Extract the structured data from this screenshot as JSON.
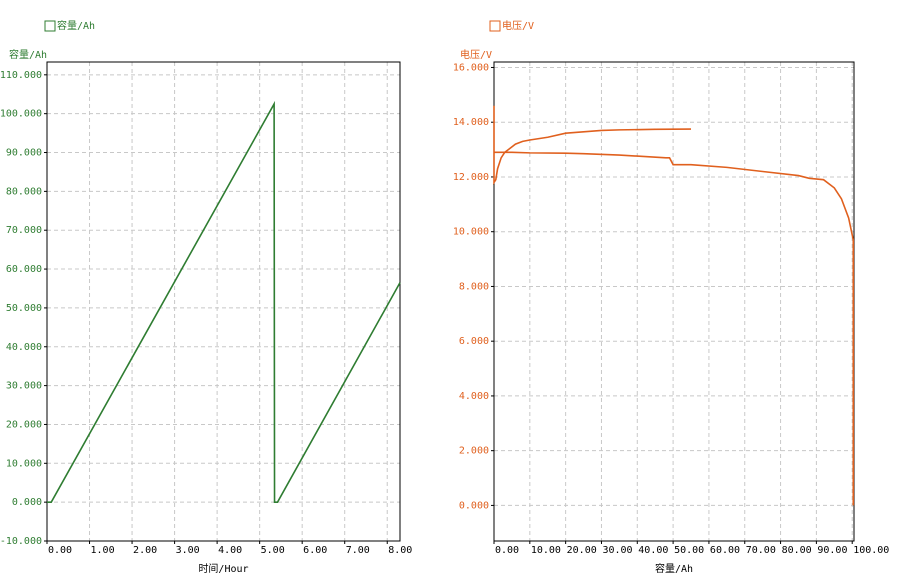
{
  "chart_data": [
    {
      "type": "line",
      "legend_corner": "top-left",
      "grid": true,
      "ylabel": "容量/Ah",
      "xlabel": "时间/Hour",
      "xlim": [
        0,
        8.3
      ],
      "ylim": [
        -10,
        113.3
      ],
      "xticks": [
        {
          "value": 0,
          "label": "0.00"
        },
        {
          "value": 1,
          "label": "1.00"
        },
        {
          "value": 2,
          "label": "2.00"
        },
        {
          "value": 3,
          "label": "3.00"
        },
        {
          "value": 4,
          "label": "4.00"
        },
        {
          "value": 5,
          "label": "5.00"
        },
        {
          "value": 6,
          "label": "6.00"
        },
        {
          "value": 7,
          "label": "7.00"
        },
        {
          "value": 8,
          "label": "8.00"
        }
      ],
      "yticks": [
        {
          "value": -10,
          "label": "-10.000"
        },
        {
          "value": 0,
          "label": "0.000"
        },
        {
          "value": 10,
          "label": "10.000"
        },
        {
          "value": 20,
          "label": "20.000"
        },
        {
          "value": 30,
          "label": "30.000"
        },
        {
          "value": 40,
          "label": "40.000"
        },
        {
          "value": 50,
          "label": "50.000"
        },
        {
          "value": 60,
          "label": "60.000"
        },
        {
          "value": 70,
          "label": "70.000"
        },
        {
          "value": 80,
          "label": "80.000"
        },
        {
          "value": 90,
          "label": "90.000"
        },
        {
          "value": 100,
          "label": "100.000"
        },
        {
          "value": 110,
          "label": "110.000"
        }
      ],
      "series": [
        {
          "name": "容量/Ah",
          "color": "#2f7d32",
          "x": [
            0,
            0.1,
            5.34,
            5.35,
            5.42,
            8.3
          ],
          "values": [
            0,
            0,
            102.5,
            0,
            0,
            56.5
          ]
        }
      ]
    },
    {
      "type": "line",
      "legend_corner": "top-left",
      "grid": true,
      "ylabel": "电压/V",
      "xlabel": "容量/Ah",
      "xlim": [
        0,
        100.5
      ],
      "ylim": [
        -1.3,
        16.2
      ],
      "xticks": [
        {
          "value": 0,
          "label": "0.00"
        },
        {
          "value": 10,
          "label": "10.00"
        },
        {
          "value": 20,
          "label": "20.00"
        },
        {
          "value": 30,
          "label": "30.00"
        },
        {
          "value": 40,
          "label": "40.00"
        },
        {
          "value": 50,
          "label": "50.00"
        },
        {
          "value": 60,
          "label": "60.00"
        },
        {
          "value": 70,
          "label": "70.00"
        },
        {
          "value": 80,
          "label": "80.00"
        },
        {
          "value": 90,
          "label": "90.00"
        },
        {
          "value": 100,
          "label": "100.00"
        }
      ],
      "yticks": [
        {
          "value": 0,
          "label": "0.000"
        },
        {
          "value": 2,
          "label": "2.000"
        },
        {
          "value": 4,
          "label": "4.000"
        },
        {
          "value": 6,
          "label": "6.000"
        },
        {
          "value": 8,
          "label": "8.000"
        },
        {
          "value": 10,
          "label": "10.000"
        },
        {
          "value": 12,
          "label": "12.000"
        },
        {
          "value": 14,
          "label": "14.000"
        },
        {
          "value": 16,
          "label": "16.000"
        }
      ],
      "series": [
        {
          "name": "电压/V",
          "color": "#e0601e",
          "x": [
            0,
            0,
            0.5,
            1,
            2,
            3,
            4,
            6,
            8,
            10,
            15,
            20,
            25,
            30,
            35,
            45,
            55,
            null,
            0,
            5,
            10,
            20,
            25,
            35,
            48,
            49,
            50,
            55,
            65,
            75,
            85,
            88,
            92,
            95,
            97,
            99,
            100.3,
            100.3
          ],
          "values": [
            14.6,
            11.8,
            11.9,
            12.3,
            12.7,
            12.9,
            13.0,
            13.2,
            13.3,
            13.35,
            13.45,
            13.6,
            13.65,
            13.7,
            13.72,
            13.74,
            13.75,
            null,
            12.9,
            12.9,
            12.88,
            12.87,
            12.85,
            12.8,
            12.7,
            12.7,
            12.45,
            12.45,
            12.35,
            12.2,
            12.05,
            11.95,
            11.9,
            11.6,
            11.2,
            10.5,
            9.7,
            0
          ]
        }
      ]
    }
  ]
}
